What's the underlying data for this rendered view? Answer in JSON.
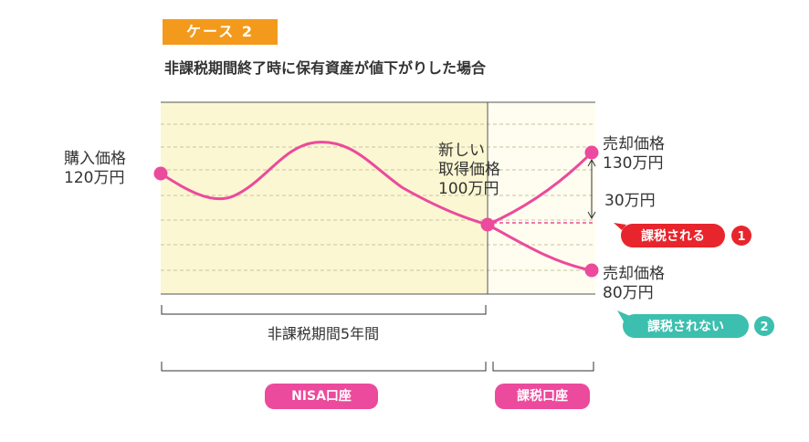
{
  "header": {
    "case_label": "ケース 2",
    "title": "非課税期間終了時に保有資産が値下がりした場合"
  },
  "points": {
    "purchase": {
      "label": "購入価格",
      "value": "120万円"
    },
    "new_cost": {
      "label_line1": "新しい",
      "label_line2": "取得価格",
      "value": "100万円"
    },
    "sale_high": {
      "label": "売却価格",
      "value": "130万円"
    },
    "sale_low": {
      "label": "売却価格",
      "value": "80万円"
    }
  },
  "difference": "30万円",
  "callouts": {
    "taxed": {
      "text": "課税される",
      "number": "1",
      "color": "#e8252c"
    },
    "not_taxed": {
      "text": "課税されない",
      "number": "2",
      "color": "#3cbfae"
    }
  },
  "period_label": "非課税期間5年間",
  "accounts": {
    "nisa": "NISA口座",
    "taxable": "課税口座"
  },
  "colors": {
    "line": "#ec4a9c",
    "nisa_area": "#fbf7d2",
    "taxable_area": "#fefdef",
    "tag_orange": "#f39a1c"
  }
}
